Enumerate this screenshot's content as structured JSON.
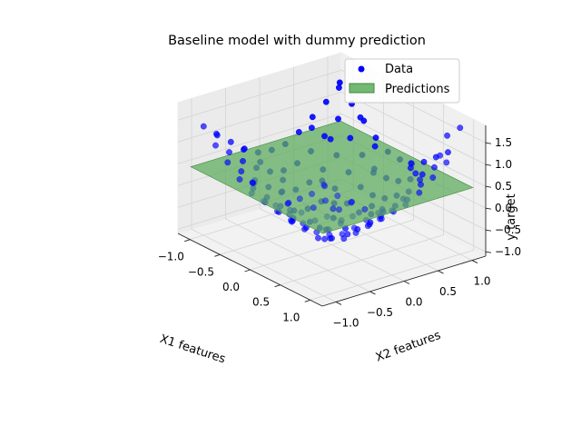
{
  "chart_data": {
    "type": "scatter3d",
    "title": "Baseline model with dummy prediction",
    "xlabel": "X1 features",
    "ylabel": "X2 features",
    "zlabel": "y target",
    "xlim": [
      -1.2,
      1.2
    ],
    "ylim": [
      -1.2,
      1.2
    ],
    "zlim": [
      -1.1,
      1.9
    ],
    "x_ticks": [
      -1.0,
      -0.5,
      0.0,
      0.5,
      1.0
    ],
    "y_ticks": [
      -1.0,
      -0.5,
      0.0,
      0.5,
      1.0
    ],
    "z_ticks": [
      -1.0,
      -0.5,
      0.0,
      0.5,
      1.0,
      1.5
    ],
    "x_tick_labels": [
      "−1.0",
      "−0.5",
      "0.0",
      "0.5",
      "1.0"
    ],
    "y_tick_labels": [
      "−1.0",
      "−0.5",
      "0.0",
      "0.5",
      "1.0"
    ],
    "z_tick_labels": [
      "−1.0",
      "−0.5",
      "0.0",
      "0.5",
      "1.0",
      "1.5"
    ],
    "grid": true,
    "legend_position": "top-right",
    "legend": [
      {
        "label": "Data",
        "marker": "dot",
        "color": "#0000ff"
      },
      {
        "label": "Predictions",
        "marker": "rect",
        "color": "#5aab5a"
      }
    ],
    "plane": {
      "name": "Predictions",
      "z": 0.45,
      "color": "#5aab5a"
    },
    "data_color": "#0000ff",
    "points": [
      [
        -1.0,
        -1.0,
        1.4
      ],
      [
        -0.8,
        -1.0,
        1.1
      ],
      [
        -0.6,
        -1.0,
        0.85
      ],
      [
        -0.4,
        -1.0,
        0.6
      ],
      [
        -0.2,
        -1.0,
        0.42
      ],
      [
        0.0,
        -1.0,
        0.38
      ],
      [
        0.2,
        -1.0,
        0.42
      ],
      [
        0.4,
        -1.0,
        0.6
      ],
      [
        0.6,
        -1.0,
        0.85
      ],
      [
        0.8,
        -1.0,
        1.1
      ],
      [
        1.0,
        -1.0,
        1.45
      ],
      [
        -1.0,
        -0.8,
        1.1
      ],
      [
        -0.8,
        -0.8,
        0.85
      ],
      [
        -0.6,
        -0.8,
        0.55
      ],
      [
        -0.4,
        -0.8,
        0.3
      ],
      [
        -0.2,
        -0.8,
        0.12
      ],
      [
        0.0,
        -0.8,
        0.05
      ],
      [
        0.2,
        -0.8,
        0.12
      ],
      [
        0.4,
        -0.8,
        0.3
      ],
      [
        0.6,
        -0.8,
        0.55
      ],
      [
        0.8,
        -0.8,
        0.85
      ],
      [
        1.0,
        -0.8,
        1.1
      ],
      [
        -1.0,
        -0.6,
        0.85
      ],
      [
        -0.8,
        -0.6,
        0.55
      ],
      [
        -0.6,
        -0.6,
        0.25
      ],
      [
        -0.4,
        -0.6,
        0.0
      ],
      [
        -0.2,
        -0.6,
        -0.2
      ],
      [
        0.0,
        -0.6,
        -0.25
      ],
      [
        0.2,
        -0.6,
        -0.18
      ],
      [
        0.4,
        -0.6,
        0.02
      ],
      [
        0.6,
        -0.6,
        0.25
      ],
      [
        0.8,
        -0.6,
        0.55
      ],
      [
        1.0,
        -0.6,
        0.85
      ],
      [
        -1.0,
        -0.4,
        0.6
      ],
      [
        -0.8,
        -0.4,
        0.3
      ],
      [
        -0.6,
        -0.4,
        0.0
      ],
      [
        -0.4,
        -0.4,
        -0.3
      ],
      [
        -0.2,
        -0.4,
        -0.5
      ],
      [
        0.0,
        -0.4,
        -0.55
      ],
      [
        0.2,
        -0.4,
        -0.48
      ],
      [
        0.4,
        -0.4,
        -0.28
      ],
      [
        0.6,
        -0.4,
        0.0
      ],
      [
        0.8,
        -0.4,
        0.3
      ],
      [
        1.0,
        -0.4,
        0.6
      ],
      [
        -1.0,
        -0.2,
        0.42
      ],
      [
        -0.8,
        -0.2,
        0.12
      ],
      [
        -0.6,
        -0.2,
        -0.2
      ],
      [
        -0.4,
        -0.2,
        -0.5
      ],
      [
        -0.2,
        -0.2,
        -0.75
      ],
      [
        0.0,
        -0.2,
        -0.85
      ],
      [
        0.2,
        -0.2,
        -0.72
      ],
      [
        0.4,
        -0.2,
        -0.48
      ],
      [
        0.6,
        -0.2,
        -0.2
      ],
      [
        0.8,
        -0.2,
        0.12
      ],
      [
        1.0,
        -0.2,
        0.42
      ],
      [
        -1.0,
        0.0,
        0.38
      ],
      [
        -0.8,
        0.0,
        0.05
      ],
      [
        -0.6,
        0.0,
        -0.25
      ],
      [
        -0.4,
        0.0,
        -0.55
      ],
      [
        -0.2,
        0.0,
        -0.85
      ],
      [
        0.0,
        0.0,
        -0.95
      ],
      [
        0.2,
        0.0,
        -0.82
      ],
      [
        0.4,
        0.0,
        -0.55
      ],
      [
        0.6,
        0.0,
        -0.25
      ],
      [
        0.8,
        0.0,
        0.05
      ],
      [
        1.0,
        0.0,
        0.38
      ],
      [
        -1.0,
        0.2,
        0.42
      ],
      [
        -0.8,
        0.2,
        0.12
      ],
      [
        -0.6,
        0.2,
        -0.18
      ],
      [
        -0.4,
        0.2,
        -0.48
      ],
      [
        -0.2,
        0.2,
        -0.72
      ],
      [
        0.0,
        0.2,
        -0.82
      ],
      [
        0.2,
        0.2,
        -0.7
      ],
      [
        0.4,
        0.2,
        -0.45
      ],
      [
        0.6,
        0.2,
        -0.18
      ],
      [
        0.8,
        0.2,
        0.12
      ],
      [
        1.0,
        0.2,
        0.42
      ],
      [
        -1.0,
        0.4,
        0.6
      ],
      [
        -0.8,
        0.4,
        0.3
      ],
      [
        -0.6,
        0.4,
        0.02
      ],
      [
        -0.4,
        0.4,
        -0.28
      ],
      [
        -0.2,
        0.4,
        -0.48
      ],
      [
        0.0,
        0.4,
        -0.55
      ],
      [
        0.2,
        0.4,
        -0.45
      ],
      [
        0.4,
        0.4,
        -0.25
      ],
      [
        0.6,
        0.4,
        0.02
      ],
      [
        0.8,
        0.4,
        0.3
      ],
      [
        1.0,
        0.4,
        0.6
      ],
      [
        -1.0,
        0.6,
        0.85
      ],
      [
        -0.8,
        0.6,
        0.55
      ],
      [
        -0.6,
        0.6,
        0.25
      ],
      [
        -0.4,
        0.6,
        0.0
      ],
      [
        -0.2,
        0.6,
        -0.2
      ],
      [
        0.0,
        0.6,
        -0.25
      ],
      [
        0.2,
        0.6,
        -0.18
      ],
      [
        0.4,
        0.6,
        0.02
      ],
      [
        0.6,
        0.6,
        0.25
      ],
      [
        0.8,
        0.6,
        0.55
      ],
      [
        1.0,
        0.6,
        0.85
      ],
      [
        -1.0,
        0.8,
        1.1
      ],
      [
        -0.8,
        0.8,
        0.85
      ],
      [
        -0.6,
        0.8,
        0.55
      ],
      [
        -0.4,
        0.8,
        0.3
      ],
      [
        -0.2,
        0.8,
        0.12
      ],
      [
        0.0,
        0.8,
        0.05
      ],
      [
        0.2,
        0.8,
        0.12
      ],
      [
        0.4,
        0.8,
        0.3
      ],
      [
        0.6,
        0.8,
        0.55
      ],
      [
        0.8,
        0.8,
        0.85
      ],
      [
        1.0,
        0.8,
        1.1
      ],
      [
        -1.0,
        1.0,
        1.45
      ],
      [
        -0.8,
        1.0,
        1.1
      ],
      [
        -0.6,
        1.0,
        0.85
      ],
      [
        -0.4,
        1.0,
        0.6
      ],
      [
        -0.2,
        1.0,
        0.42
      ],
      [
        0.0,
        1.0,
        0.38
      ],
      [
        0.2,
        1.0,
        0.42
      ],
      [
        0.4,
        1.0,
        0.6
      ],
      [
        0.6,
        1.0,
        0.85
      ],
      [
        0.8,
        1.0,
        1.1
      ],
      [
        1.0,
        1.0,
        1.8
      ],
      [
        -0.9,
        -0.5,
        0.7
      ],
      [
        -0.3,
        -0.9,
        0.55
      ],
      [
        0.3,
        -0.9,
        0.5
      ],
      [
        0.9,
        -0.5,
        0.75
      ],
      [
        -0.9,
        0.5,
        0.72
      ],
      [
        -0.3,
        0.9,
        0.52
      ],
      [
        0.3,
        0.9,
        0.55
      ],
      [
        0.9,
        0.5,
        0.78
      ],
      [
        -0.5,
        -0.3,
        -0.1
      ],
      [
        0.5,
        -0.3,
        -0.05
      ],
      [
        -0.5,
        0.3,
        -0.12
      ],
      [
        0.5,
        0.3,
        -0.08
      ],
      [
        -0.1,
        -0.5,
        -0.4
      ],
      [
        0.1,
        0.5,
        -0.38
      ],
      [
        -0.7,
        -0.1,
        -0.05
      ],
      [
        0.7,
        0.1,
        0.0
      ],
      [
        -0.1,
        0.7,
        0.15
      ],
      [
        0.1,
        -0.7,
        0.1
      ],
      [
        -0.3,
        -0.3,
        -0.55
      ],
      [
        0.3,
        0.3,
        -0.52
      ],
      [
        -0.3,
        0.3,
        -0.5
      ],
      [
        0.3,
        -0.3,
        -0.52
      ],
      [
        -0.9,
        0.9,
        1.45
      ],
      [
        0.9,
        -0.9,
        1.3
      ],
      [
        -0.9,
        -0.9,
        1.25
      ],
      [
        0.9,
        0.9,
        1.6
      ],
      [
        -0.15,
        0.05,
        -0.88
      ],
      [
        0.05,
        -0.15,
        -0.86
      ],
      [
        -0.5,
        -0.7,
        0.3
      ],
      [
        0.6,
        0.7,
        0.62
      ],
      [
        -0.7,
        0.6,
        0.55
      ],
      [
        0.7,
        -0.6,
        0.5
      ],
      [
        -0.25,
        -0.1,
        -0.7
      ],
      [
        0.15,
        0.1,
        -0.8
      ],
      [
        0.85,
        0.3,
        0.4
      ],
      [
        -0.85,
        -0.3,
        0.35
      ],
      [
        0.35,
        0.85,
        0.5
      ],
      [
        -0.35,
        -0.85,
        0.48
      ],
      [
        0.95,
        0.75,
        1.25
      ],
      [
        -0.6,
        0.95,
        0.95
      ]
    ]
  }
}
